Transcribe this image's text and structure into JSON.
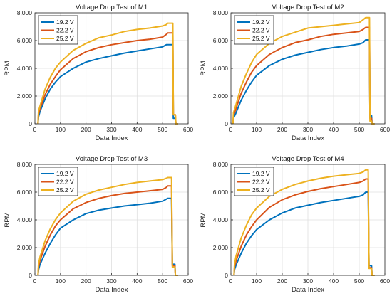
{
  "chart_data": [
    {
      "type": "line",
      "title": "Voltage Drop Test of M1",
      "xlabel": "Data Index",
      "ylabel": "RPM",
      "xlim": [
        0,
        600
      ],
      "ylim": [
        0,
        8000
      ],
      "x_ticks": [
        "0",
        "100",
        "200",
        "300",
        "400",
        "500",
        "600"
      ],
      "y_ticks": [
        "0",
        "2,000",
        "4,000",
        "6,000",
        "8,000"
      ],
      "grid": true,
      "legend_position": "top-left",
      "series": [
        {
          "name": "19.2 V",
          "color": "#0072BD",
          "x": [
            12,
            14,
            20,
            40,
            60,
            80,
            100,
            150,
            200,
            250,
            300,
            350,
            400,
            450,
            500,
            515,
            520,
            540,
            542,
            550,
            552,
            560
          ],
          "y": [
            0,
            500,
            900,
            1800,
            2500,
            3000,
            3400,
            4000,
            4450,
            4700,
            4900,
            5100,
            5250,
            5400,
            5550,
            5700,
            5700,
            5700,
            400,
            400,
            0,
            0
          ]
        },
        {
          "name": "22.2 V",
          "color": "#D95319",
          "x": [
            12,
            14,
            20,
            40,
            60,
            80,
            100,
            150,
            200,
            250,
            300,
            350,
            400,
            450,
            500,
            515,
            520,
            540,
            542,
            550,
            552,
            560
          ],
          "y": [
            0,
            700,
            1100,
            2100,
            2850,
            3400,
            3900,
            4700,
            5200,
            5500,
            5700,
            5850,
            6000,
            6100,
            6250,
            6450,
            6550,
            6550,
            650,
            650,
            0,
            0
          ]
        },
        {
          "name": "25.2 V",
          "color": "#EDB120",
          "x": [
            12,
            14,
            20,
            40,
            60,
            80,
            100,
            150,
            200,
            250,
            300,
            350,
            400,
            450,
            500,
            515,
            520,
            540,
            542,
            550,
            552,
            560
          ],
          "y": [
            0,
            900,
            1300,
            2500,
            3350,
            4000,
            4450,
            5300,
            5800,
            6200,
            6400,
            6650,
            6800,
            6900,
            7050,
            7150,
            7250,
            7250,
            650,
            650,
            0,
            0
          ]
        }
      ]
    },
    {
      "type": "line",
      "title": "Voltage Drop Test of M2",
      "xlabel": "Data Index",
      "ylabel": "RPM",
      "xlim": [
        0,
        600
      ],
      "ylim": [
        0,
        8000
      ],
      "x_ticks": [
        "0",
        "100",
        "200",
        "300",
        "400",
        "500",
        "600"
      ],
      "y_ticks": [
        "0",
        "2,000",
        "4,000",
        "6,000",
        "8,000"
      ],
      "grid": true,
      "legend_position": "top-left",
      "series": [
        {
          "name": "19.2 V",
          "color": "#0072BD",
          "x": [
            8,
            10,
            20,
            40,
            60,
            80,
            100,
            150,
            200,
            250,
            300,
            350,
            400,
            450,
            500,
            515,
            525,
            535,
            540,
            542,
            548,
            550,
            560
          ],
          "y": [
            0,
            400,
            800,
            1700,
            2400,
            3000,
            3500,
            4200,
            4650,
            4950,
            5150,
            5350,
            5500,
            5600,
            5750,
            5850,
            6050,
            6050,
            6050,
            600,
            600,
            0,
            0
          ]
        },
        {
          "name": "22.2 V",
          "color": "#D95319",
          "x": [
            8,
            10,
            20,
            40,
            60,
            80,
            100,
            150,
            200,
            250,
            300,
            350,
            400,
            450,
            500,
            515,
            525,
            535,
            540,
            542,
            548,
            550,
            560
          ],
          "y": [
            0,
            600,
            1100,
            2200,
            3000,
            3700,
            4200,
            5000,
            5500,
            5850,
            6050,
            6300,
            6450,
            6550,
            6650,
            6800,
            6950,
            6950,
            6950,
            400,
            400,
            0,
            0
          ]
        },
        {
          "name": "25.2 V",
          "color": "#EDB120",
          "x": [
            8,
            10,
            20,
            40,
            60,
            80,
            100,
            150,
            200,
            250,
            300,
            350,
            400,
            450,
            500,
            515,
            525,
            535,
            540,
            542,
            548,
            550,
            560
          ],
          "y": [
            0,
            800,
            1400,
            2700,
            3600,
            4400,
            5000,
            5800,
            6300,
            6600,
            6900,
            7000,
            7100,
            7200,
            7300,
            7500,
            7650,
            7650,
            7650,
            200,
            200,
            0,
            0
          ]
        }
      ]
    },
    {
      "type": "line",
      "title": "Voltage Drop Test of M3",
      "xlabel": "Data Index",
      "ylabel": "RPM",
      "xlim": [
        0,
        600
      ],
      "ylim": [
        0,
        8000
      ],
      "x_ticks": [
        "0",
        "100",
        "200",
        "300",
        "400",
        "500",
        "600"
      ],
      "y_ticks": [
        "0",
        "2,000",
        "4,000",
        "6,000",
        "8,000"
      ],
      "grid": true,
      "legend_position": "top-left",
      "series": [
        {
          "name": "19.2 V",
          "color": "#0072BD",
          "x": [
            12,
            14,
            20,
            40,
            60,
            80,
            100,
            150,
            200,
            250,
            300,
            350,
            400,
            450,
            500,
            515,
            520,
            535,
            538,
            548,
            550,
            560
          ],
          "y": [
            0,
            400,
            800,
            1600,
            2300,
            2900,
            3400,
            4000,
            4450,
            4700,
            4850,
            5000,
            5100,
            5200,
            5350,
            5500,
            5550,
            5550,
            800,
            800,
            0,
            0
          ]
        },
        {
          "name": "22.2 V",
          "color": "#D95319",
          "x": [
            12,
            14,
            20,
            40,
            60,
            80,
            100,
            150,
            200,
            250,
            300,
            350,
            400,
            450,
            500,
            515,
            520,
            535,
            538,
            548,
            550,
            560
          ],
          "y": [
            0,
            600,
            1100,
            2100,
            2900,
            3550,
            4000,
            4800,
            5250,
            5550,
            5750,
            5900,
            6000,
            6100,
            6200,
            6350,
            6450,
            6450,
            700,
            700,
            0,
            0
          ]
        },
        {
          "name": "25.2 V",
          "color": "#EDB120",
          "x": [
            12,
            14,
            20,
            40,
            60,
            80,
            100,
            150,
            200,
            250,
            300,
            350,
            400,
            450,
            500,
            515,
            520,
            535,
            538,
            548,
            550,
            560
          ],
          "y": [
            0,
            800,
            1350,
            2500,
            3350,
            4000,
            4500,
            5350,
            5850,
            6150,
            6350,
            6550,
            6700,
            6800,
            6900,
            7000,
            7050,
            7050,
            600,
            600,
            0,
            0
          ]
        }
      ]
    },
    {
      "type": "line",
      "title": "Voltage Drop Test of M4",
      "xlabel": "Data Index",
      "ylabel": "RPM",
      "xlim": [
        0,
        600
      ],
      "ylim": [
        0,
        8000
      ],
      "x_ticks": [
        "0",
        "100",
        "200",
        "300",
        "400",
        "500",
        "600"
      ],
      "y_ticks": [
        "0",
        "2,000",
        "4,000",
        "6,000",
        "8,000"
      ],
      "grid": true,
      "legend_position": "top-left",
      "series": [
        {
          "name": "19.2 V",
          "color": "#0072BD",
          "x": [
            12,
            14,
            20,
            40,
            60,
            80,
            100,
            150,
            200,
            250,
            300,
            350,
            400,
            450,
            500,
            515,
            525,
            535,
            538,
            548,
            550,
            560
          ],
          "y": [
            0,
            400,
            750,
            1600,
            2300,
            2850,
            3300,
            4000,
            4500,
            4850,
            5050,
            5250,
            5400,
            5550,
            5700,
            5800,
            6000,
            6000,
            700,
            700,
            0,
            0
          ]
        },
        {
          "name": "22.2 V",
          "color": "#D95319",
          "x": [
            12,
            14,
            20,
            40,
            60,
            80,
            100,
            150,
            200,
            250,
            300,
            350,
            400,
            450,
            500,
            515,
            525,
            535,
            538,
            548,
            550,
            560
          ],
          "y": [
            0,
            600,
            1050,
            2100,
            2900,
            3500,
            4000,
            4900,
            5450,
            5800,
            6050,
            6250,
            6400,
            6550,
            6700,
            6800,
            6950,
            6950,
            550,
            550,
            0,
            0
          ]
        },
        {
          "name": "25.2 V",
          "color": "#EDB120",
          "x": [
            12,
            14,
            20,
            40,
            60,
            80,
            100,
            150,
            200,
            250,
            300,
            350,
            400,
            450,
            500,
            515,
            525,
            535,
            538,
            548,
            550,
            560
          ],
          "y": [
            0,
            800,
            1400,
            2700,
            3600,
            4350,
            4850,
            5700,
            6200,
            6550,
            6800,
            7000,
            7150,
            7250,
            7350,
            7450,
            7600,
            7600,
            500,
            500,
            0,
            0
          ]
        }
      ]
    }
  ]
}
